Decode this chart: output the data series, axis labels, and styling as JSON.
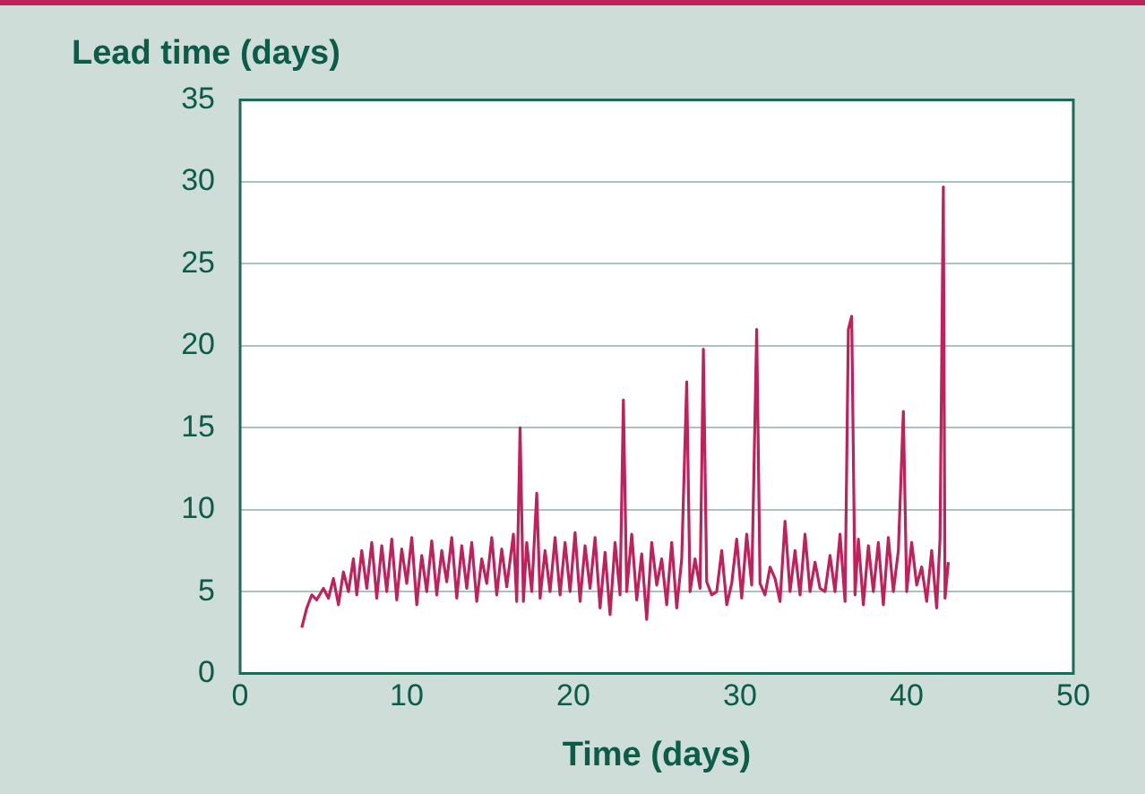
{
  "chart_data": {
    "type": "line",
    "ylabel": "Lead time (days)",
    "xlabel": "Time (days)",
    "xlim": [
      0,
      50
    ],
    "xticks": [
      0,
      10,
      20,
      30,
      40,
      50
    ],
    "ylim": [
      0,
      35
    ],
    "yticks": [
      0,
      5,
      10,
      15,
      20,
      25,
      30,
      35
    ],
    "grid": "y",
    "legend": false,
    "marker": "none",
    "line_style": "solid",
    "series": [
      {
        "color": "#c0215a",
        "x": [
          3.7,
          4.0,
          4.3,
          4.6,
          5.0,
          5.3,
          5.6,
          5.9,
          6.2,
          6.5,
          6.8,
          7.0,
          7.3,
          7.6,
          7.9,
          8.2,
          8.5,
          8.8,
          9.1,
          9.4,
          9.7,
          10.0,
          10.3,
          10.6,
          10.9,
          11.2,
          11.5,
          11.8,
          12.1,
          12.4,
          12.7,
          13.0,
          13.3,
          13.6,
          13.9,
          14.2,
          14.5,
          14.8,
          15.1,
          15.4,
          15.7,
          16.0,
          16.4,
          16.6,
          16.8,
          17.0,
          17.2,
          17.5,
          17.8,
          18.0,
          18.3,
          18.6,
          18.9,
          19.2,
          19.5,
          19.8,
          20.1,
          20.4,
          20.7,
          21.0,
          21.3,
          21.6,
          21.9,
          22.2,
          22.5,
          22.8,
          23.0,
          23.2,
          23.5,
          23.8,
          24.1,
          24.4,
          24.7,
          25.0,
          25.3,
          25.6,
          25.9,
          26.2,
          26.5,
          26.8,
          27.0,
          27.3,
          27.6,
          27.8,
          28.0,
          28.3,
          28.6,
          28.9,
          29.2,
          29.5,
          29.8,
          30.1,
          30.4,
          30.7,
          31.0,
          31.2,
          31.5,
          31.8,
          32.1,
          32.4,
          32.7,
          33.0,
          33.3,
          33.6,
          33.9,
          34.2,
          34.5,
          34.8,
          35.1,
          35.4,
          35.7,
          36.0,
          36.3,
          36.5,
          36.7,
          36.9,
          37.1,
          37.4,
          37.7,
          38.0,
          38.3,
          38.6,
          38.9,
          39.2,
          39.5,
          39.8,
          40.0,
          40.3,
          40.6,
          40.9,
          41.2,
          41.5,
          41.8,
          42.0,
          42.2,
          42.3,
          42.5
        ],
        "values": [
          2.8,
          4.0,
          4.8,
          4.5,
          5.2,
          4.6,
          5.8,
          4.2,
          6.2,
          5.0,
          7.0,
          4.8,
          7.5,
          5.2,
          8.0,
          4.6,
          7.8,
          5.0,
          8.2,
          4.5,
          7.6,
          5.5,
          8.3,
          4.2,
          7.2,
          5.0,
          8.1,
          4.8,
          7.5,
          5.6,
          8.3,
          4.6,
          7.8,
          5.2,
          8.0,
          4.4,
          7.0,
          5.5,
          8.3,
          4.8,
          7.6,
          5.3,
          8.5,
          4.4,
          15.0,
          4.4,
          8.0,
          5.0,
          11.0,
          4.6,
          7.5,
          5.0,
          8.3,
          4.8,
          8.0,
          5.0,
          8.6,
          4.4,
          7.8,
          5.2,
          8.3,
          4.0,
          7.4,
          3.6,
          8.0,
          4.8,
          16.7,
          5.0,
          8.5,
          4.5,
          7.3,
          3.3,
          8.0,
          5.4,
          7.0,
          4.2,
          8.0,
          4.0,
          7.0,
          17.8,
          5.0,
          7.0,
          5.2,
          19.8,
          5.6,
          4.8,
          5.0,
          7.5,
          4.2,
          5.5,
          8.2,
          4.6,
          8.5,
          5.4,
          21.0,
          5.5,
          4.8,
          6.5,
          5.8,
          4.4,
          9.3,
          5.0,
          7.5,
          4.8,
          8.5,
          5.0,
          6.8,
          5.2,
          5.0,
          7.2,
          5.0,
          8.5,
          4.4,
          21.0,
          21.8,
          4.8,
          8.2,
          4.2,
          7.8,
          5.0,
          8.0,
          4.2,
          8.3,
          5.0,
          7.5,
          16.0,
          5.0,
          8.0,
          5.4,
          6.5,
          4.4,
          7.5,
          4.0,
          8.2,
          29.7,
          4.6,
          6.8
        ]
      }
    ]
  }
}
